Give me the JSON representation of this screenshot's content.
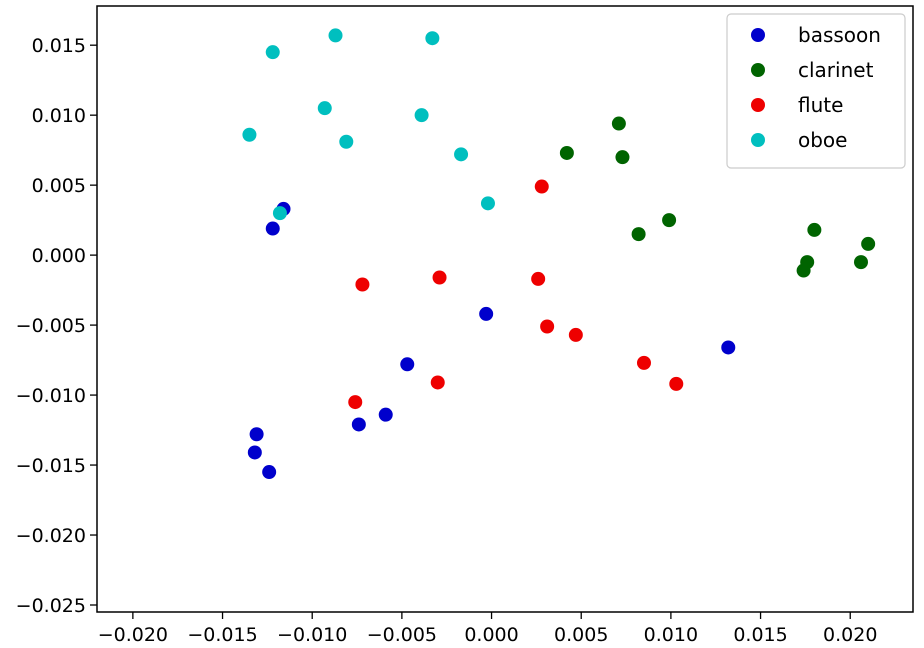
{
  "chart_data": {
    "type": "scatter",
    "title": "",
    "xlabel": "",
    "ylabel": "",
    "xlim": [
      -0.022,
      0.0235
    ],
    "ylim": [
      -0.0255,
      0.0178
    ],
    "grid": false,
    "legend_position": "top-right",
    "x_ticks": [
      -0.02,
      -0.015,
      -0.01,
      -0.005,
      0.0,
      0.005,
      0.01,
      0.015,
      0.02
    ],
    "x_tick_labels": [
      "−0.020",
      "−0.015",
      "−0.010",
      "−0.005",
      "0.000",
      "0.005",
      "0.010",
      "0.015",
      "0.020"
    ],
    "y_ticks": [
      0.015,
      0.01,
      0.005,
      0.0,
      -0.005,
      -0.01,
      -0.015,
      -0.02,
      -0.025
    ],
    "y_tick_labels": [
      "0.015",
      "0.010",
      "0.005",
      "0.000",
      "−0.005",
      "−0.010",
      "−0.015",
      "−0.020",
      "−0.025"
    ],
    "series": [
      {
        "name": "bassoon",
        "color": "#0000cc",
        "points": [
          [
            -0.0116,
            0.0033
          ],
          [
            -0.0122,
            0.0019
          ],
          [
            -0.0003,
            -0.0042
          ],
          [
            -0.0047,
            -0.0078
          ],
          [
            -0.0059,
            -0.0114
          ],
          [
            -0.0074,
            -0.0121
          ],
          [
            -0.0131,
            -0.0128
          ],
          [
            -0.0132,
            -0.0141
          ],
          [
            -0.0124,
            -0.0155
          ],
          [
            0.0132,
            -0.0066
          ]
        ]
      },
      {
        "name": "clarinet",
        "color": "#006400",
        "points": [
          [
            0.0071,
            0.0094
          ],
          [
            0.0073,
            0.007
          ],
          [
            0.0042,
            0.0073
          ],
          [
            0.0099,
            0.0025
          ],
          [
            0.0082,
            0.0015
          ],
          [
            0.018,
            0.0018
          ],
          [
            0.021,
            0.0008
          ],
          [
            0.0176,
            -0.0005
          ],
          [
            0.0174,
            -0.0011
          ],
          [
            0.0206,
            -0.0005
          ]
        ]
      },
      {
        "name": "flute",
        "color": "#ee0000",
        "points": [
          [
            0.0028,
            0.0049
          ],
          [
            -0.0029,
            -0.0016
          ],
          [
            0.0026,
            -0.0017
          ],
          [
            -0.0072,
            -0.0021
          ],
          [
            0.0031,
            -0.0051
          ],
          [
            0.0047,
            -0.0057
          ],
          [
            0.0085,
            -0.0077
          ],
          [
            0.0103,
            -0.0092
          ],
          [
            -0.003,
            -0.0091
          ],
          [
            -0.0076,
            -0.0105
          ]
        ]
      },
      {
        "name": "oboe",
        "color": "#00bfbf",
        "points": [
          [
            -0.0087,
            0.0157
          ],
          [
            -0.0033,
            0.0155
          ],
          [
            -0.0122,
            0.0145
          ],
          [
            -0.0093,
            0.0105
          ],
          [
            -0.0039,
            0.01
          ],
          [
            -0.0081,
            0.0081
          ],
          [
            -0.0135,
            0.0086
          ],
          [
            -0.0017,
            0.0072
          ],
          [
            -0.0002,
            0.0037
          ],
          [
            -0.0118,
            0.003
          ]
        ]
      }
    ]
  }
}
